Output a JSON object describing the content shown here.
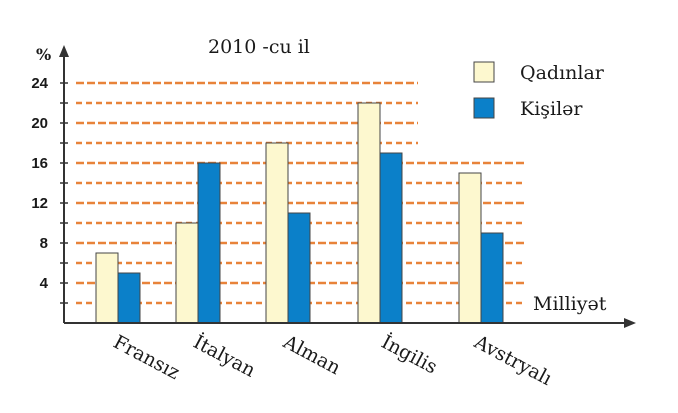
{
  "chart_data": {
    "type": "bar",
    "title": "2010 -cu il",
    "ylabel": "%",
    "xlabel": "Milliyət",
    "ylim": [
      0,
      24
    ],
    "yticks": [
      4,
      8,
      12,
      16,
      20,
      24
    ],
    "grid": true,
    "legend_position": "top-right",
    "categories": [
      "Fransız",
      "İtalyan",
      "Alman",
      "İngilis",
      "Avstryalı"
    ],
    "series": [
      {
        "name": "Qadınlar",
        "color": "#fdf8cf",
        "values": [
          7,
          10,
          18,
          22,
          15
        ]
      },
      {
        "name": "Kişilər",
        "color": "#0b80c9",
        "values": [
          5,
          16,
          11,
          17,
          9
        ]
      }
    ],
    "colors": {
      "grid": "#e8833a",
      "axis": "#333333",
      "bar_outline": "#444444"
    }
  }
}
